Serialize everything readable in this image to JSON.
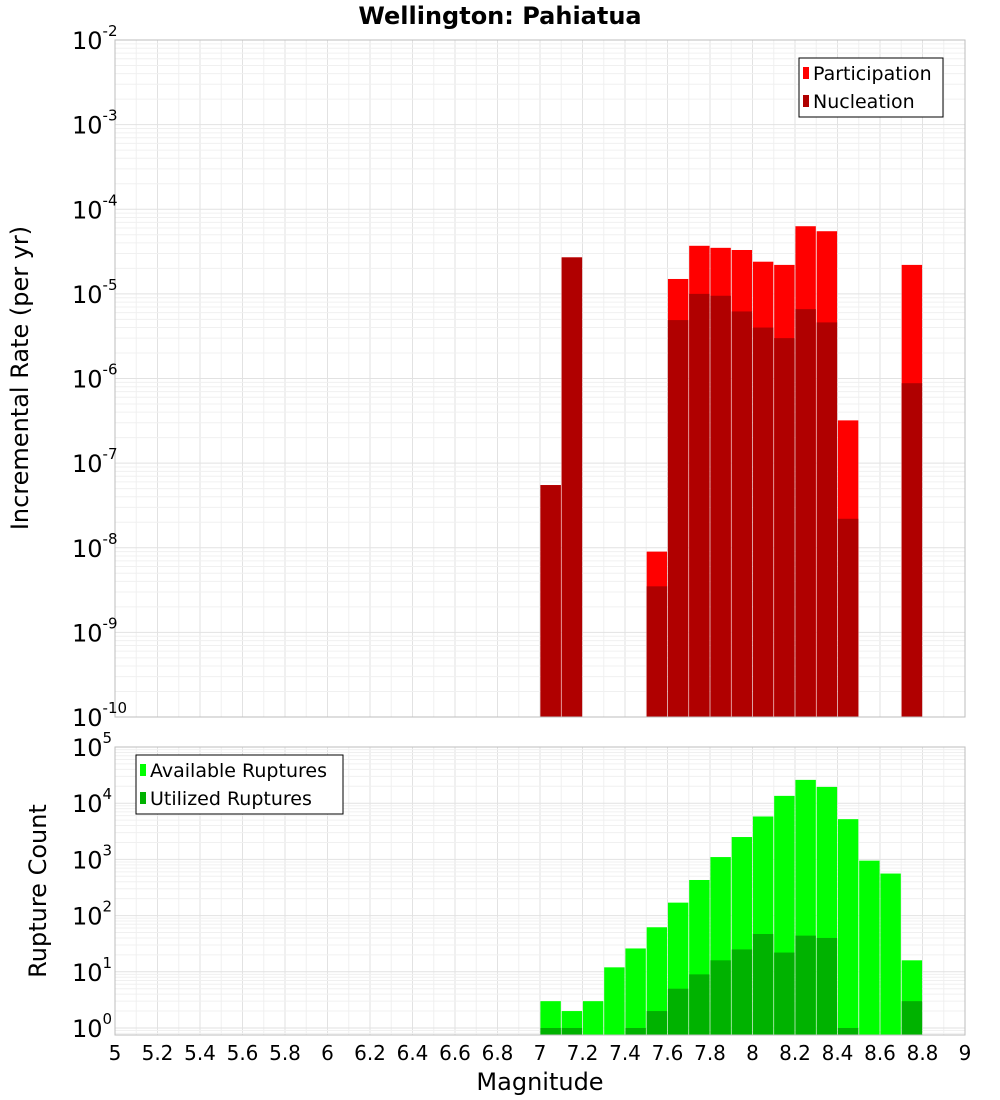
{
  "colors": {
    "participation": "#ff0000",
    "nucleation": "#b00000",
    "available": "#00ff00",
    "utilized": "#00b200"
  },
  "chart_data": [
    {
      "type": "bar",
      "title": "Wellington: Pahiatua",
      "xlabel": "",
      "ylabel": "Incremental Rate (per yr)",
      "xlim": [
        5,
        9
      ],
      "ylim": [
        1e-10,
        0.01
      ],
      "yscale": "log",
      "grid": true,
      "legend_position": "top-right",
      "y_ticks": [
        {
          "base": "10",
          "exp": "-10"
        },
        {
          "base": "10",
          "exp": "-9"
        },
        {
          "base": "10",
          "exp": "-8"
        },
        {
          "base": "10",
          "exp": "-7"
        },
        {
          "base": "10",
          "exp": "-6"
        },
        {
          "base": "10",
          "exp": "-5"
        },
        {
          "base": "10",
          "exp": "-4"
        },
        {
          "base": "10",
          "exp": "-3"
        },
        {
          "base": "10",
          "exp": "-2"
        }
      ],
      "series": [
        {
          "name": "Participation",
          "color": "#ff0000",
          "x": [
            7.05,
            7.15,
            7.55,
            7.65,
            7.75,
            7.85,
            7.95,
            8.05,
            8.15,
            8.25,
            8.35,
            8.45,
            8.75
          ],
          "values": [
            5.5e-08,
            2.7e-05,
            9e-09,
            1.5e-05,
            3.7e-05,
            3.5e-05,
            3.3e-05,
            2.4e-05,
            2.2e-05,
            6.3e-05,
            5.5e-05,
            3.2e-07,
            2.2e-05
          ]
        },
        {
          "name": "Nucleation",
          "color": "#b00000",
          "x": [
            7.05,
            7.15,
            7.55,
            7.65,
            7.75,
            7.85,
            7.95,
            8.05,
            8.15,
            8.25,
            8.35,
            8.45,
            8.75
          ],
          "values": [
            5.5e-08,
            2.7e-05,
            3.5e-09,
            4.9e-06,
            1e-05,
            9.5e-06,
            6.2e-06,
            4e-06,
            3e-06,
            6.6e-06,
            4.6e-06,
            2.2e-08,
            8.8e-07
          ]
        }
      ]
    },
    {
      "type": "bar",
      "title": "",
      "xlabel": "Magnitude",
      "ylabel": "Rupture Count",
      "xlim": [
        5,
        9
      ],
      "ylim": [
        0.75,
        100000.0
      ],
      "yscale": "log",
      "grid": true,
      "legend_position": "top-left",
      "x_ticks": [
        "5",
        "5.2",
        "5.4",
        "5.6",
        "5.8",
        "6",
        "6.2",
        "6.4",
        "6.6",
        "6.8",
        "7",
        "7.2",
        "7.4",
        "7.6",
        "7.8",
        "8",
        "8.2",
        "8.4",
        "8.6",
        "8.8",
        "9"
      ],
      "y_ticks": [
        {
          "base": "10",
          "exp": "0"
        },
        {
          "base": "10",
          "exp": "1"
        },
        {
          "base": "10",
          "exp": "2"
        },
        {
          "base": "10",
          "exp": "3"
        },
        {
          "base": "10",
          "exp": "4"
        },
        {
          "base": "10",
          "exp": "5"
        }
      ],
      "series": [
        {
          "name": "Available Ruptures",
          "color": "#00ff00",
          "x": [
            7.05,
            7.15,
            7.25,
            7.35,
            7.45,
            7.55,
            7.65,
            7.75,
            7.85,
            7.95,
            8.05,
            8.15,
            8.25,
            8.35,
            8.45,
            8.55,
            8.65,
            8.75
          ],
          "values": [
            3,
            2,
            3,
            12,
            26,
            62,
            170,
            430,
            1100,
            2500,
            5800,
            13500,
            26000,
            19500,
            5200,
            950,
            560,
            16
          ]
        },
        {
          "name": "Utilized Ruptures",
          "color": "#00b200",
          "x": [
            7.05,
            7.15,
            7.45,
            7.55,
            7.65,
            7.75,
            7.85,
            7.95,
            8.05,
            8.15,
            8.25,
            8.35,
            8.45,
            8.75
          ],
          "values": [
            1,
            1,
            1,
            2,
            5,
            9,
            16,
            25,
            47,
            22,
            44,
            40,
            1,
            3
          ]
        }
      ]
    }
  ]
}
